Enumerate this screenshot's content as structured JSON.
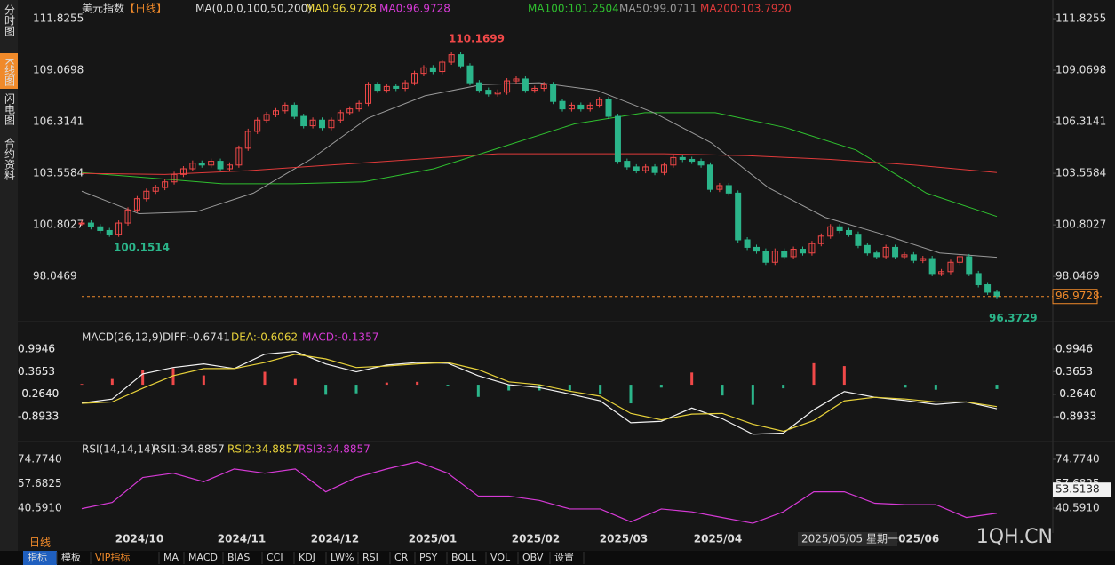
{
  "tabs": [
    "分时图",
    "K线图",
    "闪电图",
    "合约资料"
  ],
  "chart_data": {
    "type": "candlestick",
    "title": "美元指数",
    "period": "【日线】",
    "ma_label": "MA(0,0,0,100,50,200)",
    "up_color": "#f04848",
    "down_color": "#2bb58a",
    "close": [
      100.9,
      100.7,
      100.5,
      100.3,
      100.9,
      101.6,
      102.2,
      102.6,
      102.8,
      103.1,
      103.5,
      103.8,
      104.1,
      104.0,
      104.2,
      103.8,
      104.0,
      104.9,
      105.8,
      106.4,
      106.7,
      106.9,
      107.2,
      106.6,
      106.1,
      106.4,
      106.0,
      106.4,
      106.8,
      107.0,
      107.3,
      108.3,
      108.0,
      108.2,
      108.1,
      108.4,
      108.9,
      109.2,
      109.0,
      109.5,
      109.9,
      109.3,
      108.4,
      108.0,
      107.8,
      107.9,
      108.5,
      108.6,
      108.0,
      108.1,
      108.3,
      107.4,
      107.0,
      107.2,
      107.0,
      107.2,
      107.5,
      106.6,
      104.2,
      103.9,
      103.7,
      103.9,
      103.6,
      104.0,
      104.4,
      104.3,
      104.2,
      104.0,
      102.7,
      102.9,
      102.5,
      100.0,
      99.6,
      99.4,
      98.8,
      99.4,
      99.1,
      99.5,
      99.3,
      99.8,
      100.2,
      100.7,
      100.5,
      100.3,
      99.7,
      99.3,
      99.1,
      99.6,
      99.1,
      99.2,
      98.9,
      99.0,
      98.2,
      98.3,
      98.8,
      99.1,
      98.2,
      97.6,
      97.2,
      96.97
    ],
    "ylim": [
      96.2,
      112.35
    ],
    "yticks": [
      111.8255,
      109.0698,
      106.3141,
      103.5584,
      100.8027,
      98.0469
    ],
    "ma_lines": [
      {
        "name": "MA0:96.9728",
        "color": "#e8d23a",
        "values": []
      },
      {
        "name": "MA0:96.9728",
        "color": "#d63ad6",
        "values": []
      },
      {
        "name": "MA100:101.2504",
        "color": "#2fbf2f",
        "values": [
          103.6,
          103.3,
          103.0,
          103.0,
          103.1,
          103.8,
          105.0,
          106.2,
          106.8,
          106.8,
          106.0,
          104.8,
          102.5,
          101.25
        ]
      },
      {
        "name": "MA50:99.0711",
        "color": "#9a9a9a",
        "values": [
          102.6,
          101.4,
          101.5,
          102.5,
          104.3,
          106.5,
          107.7,
          108.3,
          108.4,
          108.0,
          106.8,
          105.2,
          102.8,
          101.2,
          100.3,
          99.3,
          99.07
        ]
      },
      {
        "name": "MA200:103.7920",
        "color": "#e03a3a",
        "values": [
          103.55,
          103.5,
          103.7,
          104.0,
          104.3,
          104.6,
          104.6,
          104.6,
          104.5,
          104.3,
          104.0,
          103.6
        ]
      }
    ],
    "last_price": {
      "value": 96.9728,
      "label": "96.9728"
    },
    "annotations": [
      110.1699,
      100.1514,
      96.3729
    ],
    "x_labels": [
      "2024/10",
      "2024/11",
      "2024/12",
      "2025/01",
      "2025/02",
      "2025/03",
      "2025/04",
      "2025/06"
    ],
    "crosshair_date": "2025/05/05 星期一"
  },
  "macd": {
    "title": "MACD(26,12,9)",
    "diff_label": "DIFF:-0.6741",
    "dea_label": "DEA:-0.6062",
    "macd_label": "MACD:-0.1357",
    "ylim": [
      -1.535,
      1.315
    ],
    "yticks": [
      0.9946,
      0.3653,
      {
        "value": -0.264,
        "label": "-0.2640"
      },
      -0.8933
    ],
    "diff": [
      -0.51,
      -0.4,
      0.3,
      0.48,
      0.58,
      0.45,
      0.85,
      0.93,
      0.58,
      0.36,
      0.55,
      0.62,
      0.6,
      0.25,
      0.0,
      -0.08,
      -0.26,
      -0.45,
      -1.06,
      -1.02,
      -0.65,
      -0.95,
      -1.38,
      -1.35,
      -0.7,
      -0.19,
      -0.35,
      -0.44,
      -0.55,
      -0.48,
      -0.67
    ],
    "dea": [
      -0.52,
      -0.48,
      -0.1,
      0.25,
      0.45,
      0.45,
      0.62,
      0.85,
      0.72,
      0.48,
      0.52,
      0.58,
      0.62,
      0.42,
      0.08,
      0.0,
      -0.18,
      -0.32,
      -0.8,
      -0.98,
      -0.82,
      -0.8,
      -1.1,
      -1.3,
      -1.0,
      -0.45,
      -0.35,
      -0.4,
      -0.48,
      -0.48,
      -0.61
    ],
    "hist": [
      0.02,
      0.16,
      0.4,
      0.46,
      0.26,
      0,
      0.36,
      0.16,
      -0.28,
      -0.24,
      0.06,
      0.08,
      -0.04,
      -0.34,
      -0.16,
      -0.16,
      -0.16,
      -0.26,
      -0.52,
      -0.08,
      0.34,
      -0.3,
      -0.56,
      -0.1,
      0.6,
      0.52,
      0,
      -0.08,
      -0.14,
      0,
      -0.12
    ]
  },
  "rsi": {
    "title": "RSI(14,14,14)",
    "rsi1_label": "RSI1:34.8857",
    "rsi2_label": "RSI2:34.8857",
    "rsi3_label": "RSI3:34.8857",
    "ylim": [
      26.3,
      82.2
    ],
    "yticks": [
      {
        "value": 74.774,
        "label": "74.7740"
      },
      57.6825,
      {
        "value": 40.591,
        "label": "40.5910"
      }
    ],
    "values": [
      40.2,
      44.6,
      62,
      65,
      59,
      68,
      65,
      68,
      52,
      62,
      68,
      73,
      65,
      49,
      49,
      46,
      40,
      40,
      31,
      40,
      38,
      34,
      30,
      38,
      52,
      52,
      44,
      43,
      43,
      34,
      37
    ],
    "cursor_value": 53.5138
  },
  "period_label": "日线",
  "toolbar": [
    "指标",
    "模板",
    "VIP指标",
    "MA",
    "MACD",
    "BIAS",
    "CCI",
    "KDJ",
    "LW%",
    "RSI",
    "CR",
    "PSY",
    "BOLL",
    "VOL",
    "OBV",
    "设置"
  ],
  "watermark": "1QH.CN"
}
